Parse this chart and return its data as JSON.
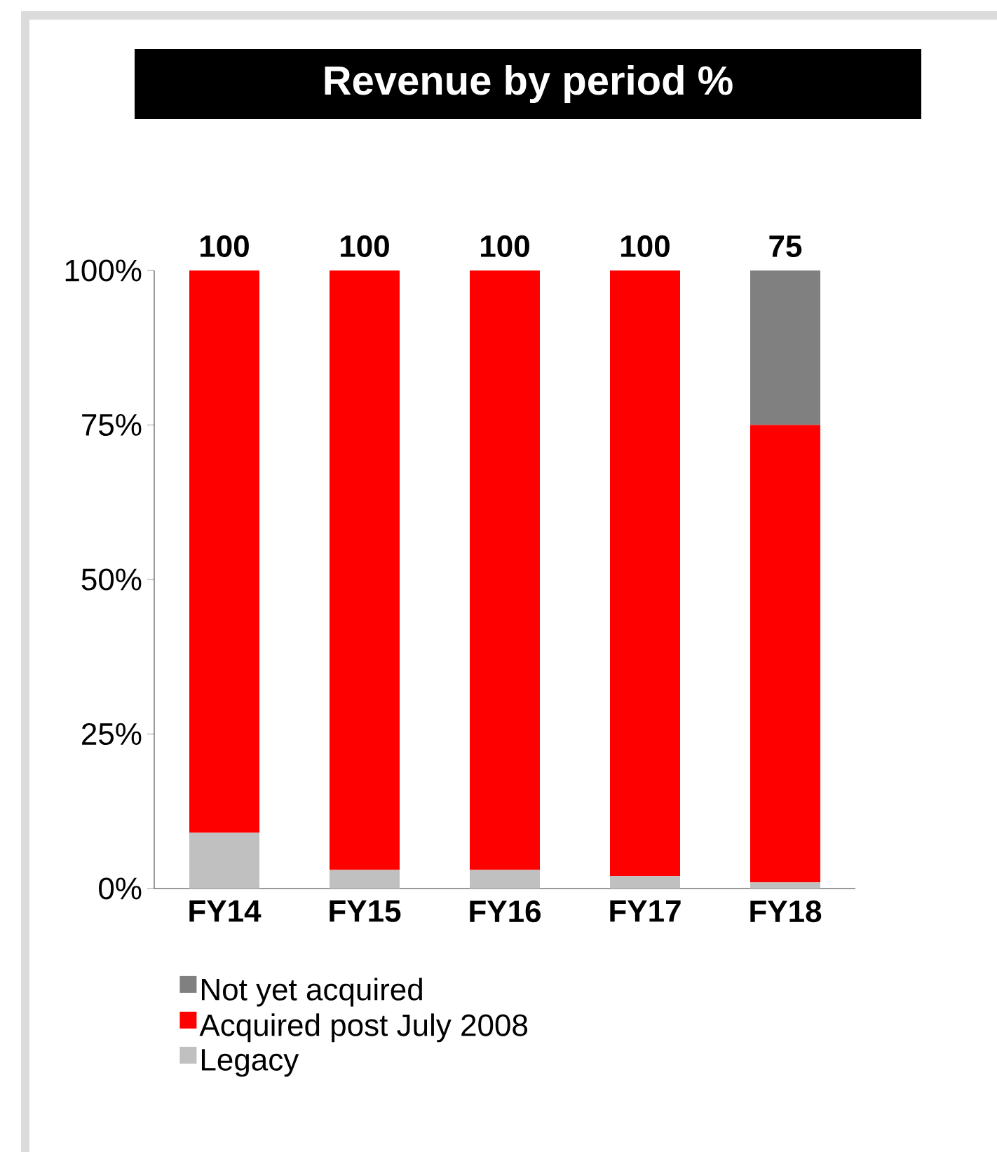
{
  "chart_data": {
    "type": "bar",
    "title": "Revenue by period %",
    "categories": [
      "FY14",
      "FY15",
      "FY16",
      "FY17",
      "FY18"
    ],
    "stacked": true,
    "series": [
      {
        "name": "Legacy",
        "color": "#c0c0c0",
        "values": [
          9,
          3,
          3,
          2,
          1
        ]
      },
      {
        "name": "Acquired post July 2008",
        "color": "#ff0000",
        "values": [
          91,
          97,
          97,
          98,
          74
        ]
      },
      {
        "name": "Not yet acquired",
        "color": "#808080",
        "values": [
          0,
          0,
          0,
          0,
          25
        ]
      }
    ],
    "ylim": [
      0,
      100
    ],
    "yticks": [
      {
        "value": 0,
        "label": "0%"
      },
      {
        "value": 25,
        "label": "25%"
      },
      {
        "value": 50,
        "label": "50%"
      },
      {
        "value": 75,
        "label": "75%"
      },
      {
        "value": 100,
        "label": "100%"
      }
    ],
    "annotations": [
      {
        "text": "100",
        "x": "FY14",
        "y": 100
      },
      {
        "text": "100",
        "x": "FY15",
        "y": 100
      },
      {
        "text": "100",
        "x": "FY16",
        "y": 100
      },
      {
        "text": "100",
        "x": "FY17",
        "y": 100
      },
      {
        "text": "75",
        "x": "FY18",
        "y": 100
      }
    ],
    "legend": "bottom"
  }
}
